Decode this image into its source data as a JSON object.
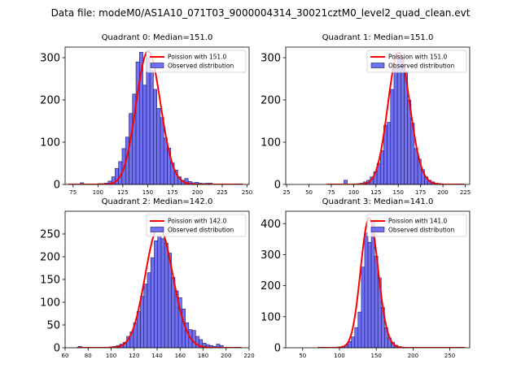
{
  "suptitle": "Data file: modeM0/AS1A10_071T03_9000004314_30021cztM0_level2_quad_clean.evt",
  "colors": {
    "hist_fill": "#7070f0",
    "hist_edge": "#1a1a66",
    "poisson": "#ff0000",
    "axes": "#000000"
  },
  "chart_data": [
    {
      "type": "bar",
      "title": "Quadrant 0: Median=151.0",
      "legend": [
        "Poission with 151.0",
        "Observed distribution"
      ],
      "xlim": [
        67,
        252
      ],
      "ylim": [
        0,
        325
      ],
      "xticks": [
        75,
        100,
        125,
        150,
        175,
        200,
        225,
        250
      ],
      "yticks": [
        0,
        100,
        200,
        300
      ],
      "bin_width": 3.5,
      "bin_centers": [
        84,
        87.5,
        91,
        94.5,
        98,
        101.5,
        105,
        108.5,
        112,
        115.5,
        119,
        122.5,
        126,
        129.5,
        133,
        136.5,
        140,
        143.5,
        147,
        150.5,
        154,
        157.5,
        161,
        164.5,
        168,
        171.5,
        175,
        178.5,
        182,
        185.5,
        189,
        192.5,
        196,
        199.5,
        203,
        206.5,
        210,
        213.5
      ],
      "values": [
        4,
        1,
        1,
        1,
        1,
        2,
        2,
        3,
        8,
        18,
        38,
        54,
        85,
        112,
        168,
        214,
        290,
        313,
        235,
        299,
        270,
        225,
        180,
        158,
        110,
        86,
        51,
        34,
        18,
        10,
        14,
        7,
        4,
        5,
        3,
        2,
        3,
        3
      ],
      "poisson_mean": 151.0,
      "poisson_scale": 315
    },
    {
      "type": "bar",
      "title": "Quadrant 1: Median=151.0",
      "legend": [
        "Poission with 151.0",
        "Observed distribution"
      ],
      "xlim": [
        24,
        230
      ],
      "ylim": [
        0,
        325
      ],
      "xticks": [
        25,
        50,
        75,
        100,
        125,
        150,
        175,
        200,
        225
      ],
      "yticks": [
        0,
        100,
        200,
        300
      ],
      "bin_width": 3.8,
      "bin_centers": [
        91,
        101.5,
        105.3,
        109.1,
        112.9,
        116.7,
        120.5,
        124.3,
        128.1,
        131.9,
        135.7,
        139.5,
        143.3,
        147.1,
        150.9,
        154.7,
        158.5,
        162.3,
        166.1,
        169.9,
        173.7,
        177.5,
        181.3,
        185.1,
        188.9,
        192.7,
        196.5,
        200.3
      ],
      "values": [
        10,
        1,
        2,
        3,
        6,
        10,
        18,
        30,
        50,
        80,
        140,
        147,
        225,
        275,
        305,
        300,
        265,
        200,
        145,
        85,
        60,
        35,
        18,
        10,
        6,
        3,
        2,
        1
      ],
      "poisson_mean": 151.0,
      "poisson_scale": 312
    },
    {
      "type": "bar",
      "title": "Quadrant 2: Median=142.0",
      "legend": [
        "Poission with 142.0",
        "Observed distribution"
      ],
      "xlim": [
        60,
        220
      ],
      "ylim": [
        0,
        300
      ],
      "xticks": [
        60,
        80,
        100,
        120,
        140,
        160,
        180,
        200,
        220
      ],
      "yticks": [
        0,
        50,
        100,
        150,
        200,
        250
      ],
      "bin_width": 3.0,
      "bin_centers": [
        73,
        100,
        103,
        106,
        109,
        112,
        115,
        118,
        121,
        124,
        127,
        130,
        133,
        136,
        139,
        142,
        145,
        148,
        151,
        154,
        157,
        160,
        163,
        166,
        169,
        172,
        175,
        178,
        181,
        184,
        187,
        190,
        193,
        196
      ],
      "values": [
        3,
        2,
        3,
        5,
        8,
        12,
        25,
        35,
        55,
        80,
        113,
        140,
        165,
        198,
        235,
        245,
        240,
        230,
        208,
        155,
        125,
        110,
        85,
        55,
        40,
        38,
        25,
        18,
        10,
        7,
        5,
        3,
        8,
        5
      ],
      "poisson_mean": 142.0,
      "poisson_scale": 265
    },
    {
      "type": "bar",
      "title": "Quadrant 3: Median=141.0",
      "legend": [
        "Poission with 141.0",
        "Observed distribution"
      ],
      "xlim": [
        27,
        277
      ],
      "ylim": [
        0,
        440
      ],
      "xticks": [
        50,
        100,
        150,
        200,
        250
      ],
      "yticks": [
        0,
        100,
        200,
        300,
        400
      ],
      "bin_width": 4.5,
      "bin_centers": [
        82,
        96,
        100.5,
        105,
        109.5,
        114,
        118.5,
        123,
        127.5,
        132,
        136.5,
        141,
        145.5,
        150,
        154.5,
        159,
        163.5,
        168,
        172.5,
        177,
        181.5,
        186,
        190.5
      ],
      "values": [
        2,
        2,
        3,
        5,
        10,
        20,
        35,
        65,
        115,
        260,
        370,
        340,
        410,
        295,
        225,
        130,
        65,
        32,
        18,
        8,
        4,
        2,
        1
      ],
      "poisson_mean": 141.0,
      "poisson_scale": 418
    }
  ]
}
